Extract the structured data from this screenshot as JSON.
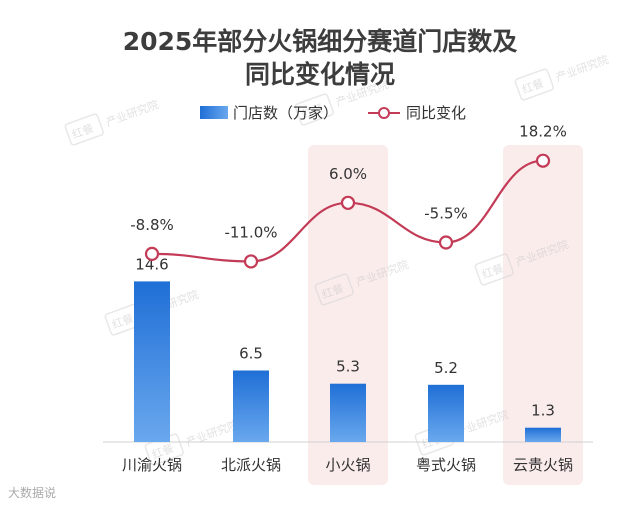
{
  "chart_data": {
    "type": "bar+line",
    "title_lines": [
      "2025年部分火锅细分赛道门店数及",
      "同比变化情况"
    ],
    "categories": [
      "川渝火锅",
      "北派火锅",
      "小火锅",
      "粤式火锅",
      "云贵火锅"
    ],
    "series": [
      {
        "name": "门店数（万家）",
        "type": "bar",
        "values": [
          14.6,
          6.5,
          5.3,
          5.2,
          1.3
        ],
        "labels": [
          "14.6",
          "6.5",
          "5.3",
          "5.2",
          "1.3"
        ]
      },
      {
        "name": "同比变化",
        "type": "line",
        "values": [
          -8.8,
          -11.0,
          6.0,
          -5.5,
          18.2
        ],
        "labels": [
          "-8.8%",
          "-11.0%",
          "6.0%",
          "-5.5%",
          "18.2%"
        ]
      }
    ],
    "highlighted_categories": [
      "小火锅",
      "云贵火锅"
    ],
    "colors": {
      "bar_top": "#1f6fd6",
      "bar_bottom": "#6aa8ee",
      "line": "#c33b56",
      "highlight_band": "#fbecec",
      "axis": "#d0d0d0"
    }
  },
  "watermark": {
    "logo": "红餐",
    "text": "产业研究院"
  },
  "footer": {
    "text": "大数据说"
  }
}
